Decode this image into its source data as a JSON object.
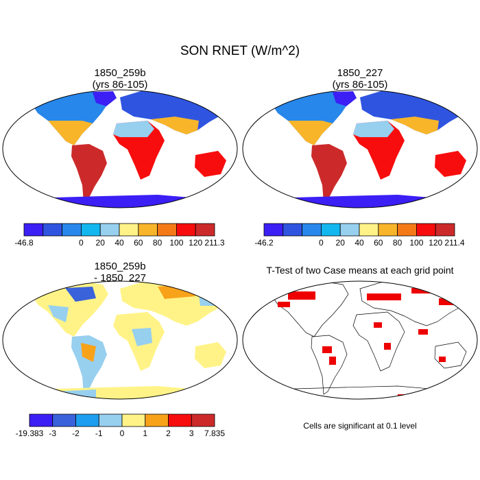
{
  "figure": {
    "title": "SON RNET (W/m^2)",
    "significance_note": "Cells are significant at 0.1 level"
  },
  "panels": [
    {
      "id": "case1",
      "title": "1850_259b",
      "subtitle": "(yrs 86-105)",
      "colorbar": {
        "colors": [
          "#3b1ff5",
          "#2f55e0",
          "#2787eb",
          "#13b7ef",
          "#97cfef",
          "#fff387",
          "#f8b52a",
          "#f47a17",
          "#f70d0d",
          "#cc2a2a"
        ],
        "labels": [
          "-46.8",
          "",
          "0",
          "20",
          "40",
          "60",
          "80",
          "100",
          "120",
          "211.3"
        ]
      }
    },
    {
      "id": "case2",
      "title": "1850_227",
      "subtitle": "(yrs 86-105)",
      "colorbar": {
        "colors": [
          "#3b1ff5",
          "#2f55e0",
          "#2787eb",
          "#13b7ef",
          "#97cfef",
          "#fff387",
          "#f8b52a",
          "#f47a17",
          "#f70d0d",
          "#cc2a2a"
        ],
        "labels": [
          "-46.2",
          "",
          "0",
          "20",
          "40",
          "60",
          "80",
          "100",
          "120",
          "211.4"
        ]
      }
    },
    {
      "id": "diff",
      "title": "1850_259b",
      "subtitle": "- 1850_227",
      "colorbar": {
        "colors": [
          "#3b1ff5",
          "#3a62db",
          "#1e9ef0",
          "#97cfef",
          "#fff387",
          "#f8a21a",
          "#f70d0d",
          "#cc2a2a"
        ],
        "labels": [
          "-19.383",
          "-3",
          "-2",
          "-1",
          "0",
          "1",
          "2",
          "3",
          "7.835"
        ]
      }
    },
    {
      "id": "ttest",
      "title": "T-Test of two Case means at each grid point",
      "sig_color": "#ee0000"
    }
  ]
}
